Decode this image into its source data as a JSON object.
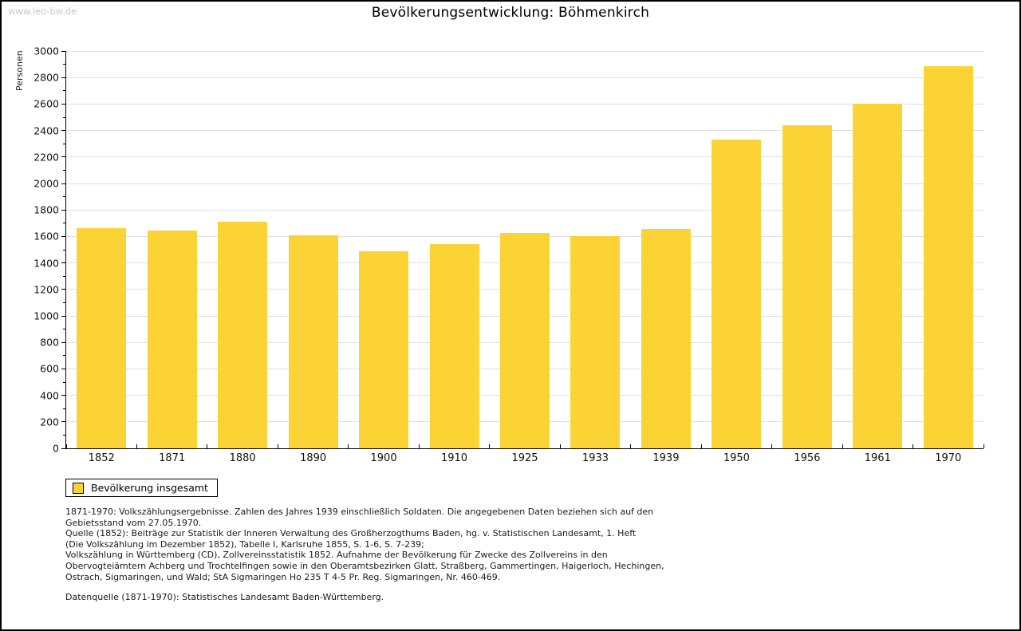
{
  "watermark": "www.leo-bw.de",
  "title": "Bevölkerungsentwicklung: Böhmenkirch",
  "chart_data": {
    "type": "bar",
    "title": "Bevölkerungsentwicklung: Böhmenkirch",
    "ylabel": "Personen",
    "xlabel": "",
    "categories": [
      "1852",
      "1871",
      "1880",
      "1890",
      "1900",
      "1910",
      "1925",
      "1933",
      "1939",
      "1950",
      "1956",
      "1961",
      "1970"
    ],
    "series": [
      {
        "name": "Bevölkerung insgesamt",
        "values": [
          1660,
          1645,
          1710,
          1610,
          1485,
          1540,
          1625,
          1600,
          1655,
          2330,
          2440,
          2600,
          2885
        ]
      }
    ],
    "ylim": [
      0,
      3000
    ],
    "y_tick_step": 200,
    "y_minor_step": 100,
    "grid": true,
    "legend_position": "bottom-left",
    "bar_color": "#FBD335"
  },
  "legend": {
    "label": "Bevölkerung insgesamt"
  },
  "footnotes": {
    "lines": [
      "1871-1970: Volkszählungsergebnisse. Zahlen des Jahres 1939 einschließlich Soldaten. Die angegebenen Daten beziehen sich auf den",
      "Gebietsstand vom 27.05.1970.",
      "Quelle (1852): Beiträge zur Statistik der Inneren Verwaltung des Großherzogthums Baden, hg. v. Statistischen Landesamt, 1. Heft",
      "(Die Volkszählung im Dezember 1852), Tabelle I, Karlsruhe 1855, S. 1-6, S. 7-239;",
      "Volkszählung in Württemberg (CD), Zollvereinsstatistik 1852. Aufnahme der Bevölkerung für Zwecke des Zollvereins in den",
      "Obervogteiämtern Achberg und Trochtelfingen sowie in den Oberamtsbezirken Glatt, Straßberg, Gammertingen, Haigerloch, Hechingen,",
      "Ostrach, Sigmaringen, und Wald; StA Sigmaringen Ho 235 T 4-5 Pr. Reg. Sigmaringen, Nr. 460-469."
    ]
  },
  "source_line": "Datenquelle (1871-1970): Statistisches Landesamt Baden-Württemberg.",
  "colors": {
    "bar": "#FBD335",
    "grid": "#E0E0E0",
    "axis": "#000000",
    "watermark": "#C9C9C9"
  }
}
